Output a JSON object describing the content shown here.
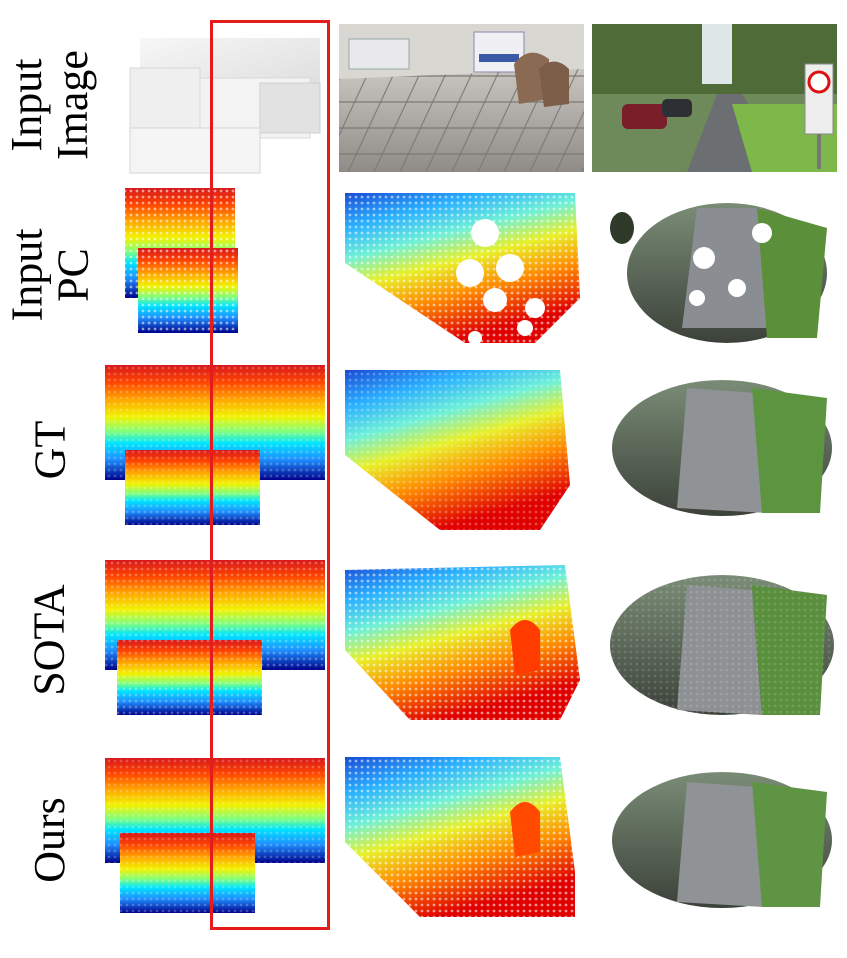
{
  "figure": {
    "row_labels": [
      {
        "line1": "Input",
        "line2": "Image"
      },
      {
        "line1": "Input",
        "line2": "PC"
      },
      {
        "line1": "GT",
        "line2": ""
      },
      {
        "line1": "SOTA",
        "line2": ""
      },
      {
        "line1": "Ours",
        "line2": ""
      }
    ],
    "highlight_color": "#e41c1c",
    "colormap": "jet",
    "columns": [
      "sofa-render",
      "indoor-room-scan",
      "outdoor-street-scan"
    ]
  }
}
